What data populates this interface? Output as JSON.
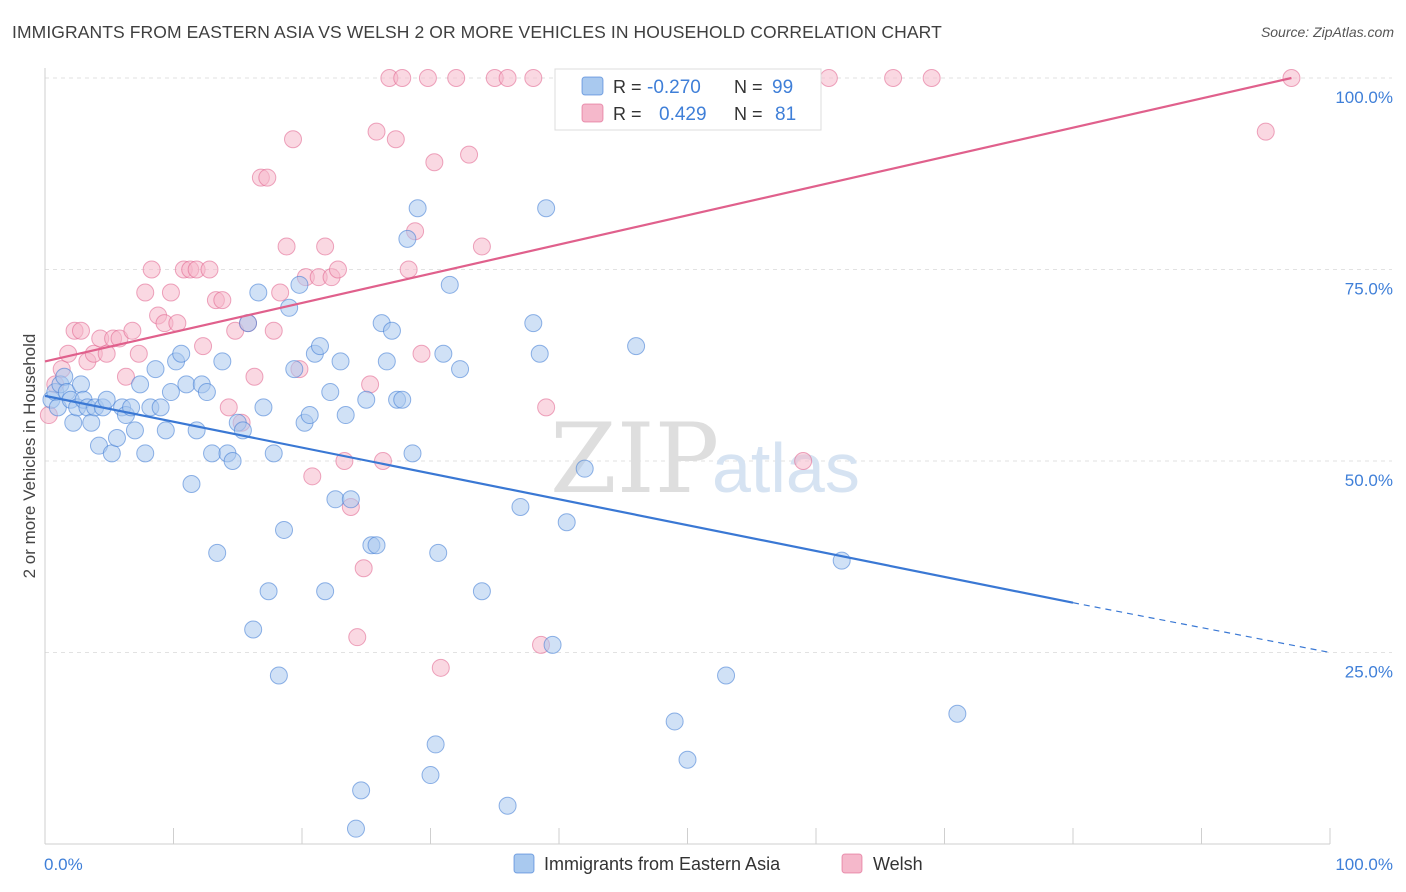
{
  "title": "IMMIGRANTS FROM EASTERN ASIA VS WELSH 2 OR MORE VEHICLES IN HOUSEHOLD CORRELATION CHART",
  "source": "Source: ZipAtlas.com",
  "watermark": {
    "zip": "ZIP",
    "atlas": "atlas"
  },
  "stats": {
    "r_label": "R =",
    "n_label": "N =",
    "rows": [
      {
        "r": "-0.270",
        "n": "99",
        "color": "#a9c9ef"
      },
      {
        "r": "0.429",
        "n": "81",
        "color": "#f5b8cb"
      }
    ]
  },
  "chart_data": {
    "type": "scatter",
    "ylabel": "2 or more Vehicles in Household",
    "xlabel": "",
    "xlim": [
      0,
      100
    ],
    "ylim": [
      0,
      100
    ],
    "x_tick_labels": [
      "0.0%",
      "100.0%"
    ],
    "y_tick_labels": [
      {
        "value": 25,
        "label": "25.0%"
      },
      {
        "value": 50,
        "label": "50.0%"
      },
      {
        "value": 75,
        "label": "75.0%"
      },
      {
        "value": 100,
        "label": "100.0%"
      }
    ],
    "grid": true,
    "legend_position": "bottom",
    "series": [
      {
        "name": "Immigrants from Eastern Asia",
        "color": "#3a78d4",
        "fill": "#a9c9ef",
        "trend": {
          "x": [
            0,
            80
          ],
          "y": [
            58.5,
            31.5
          ],
          "dashed_to": [
            100,
            25
          ]
        },
        "points": [
          [
            0.5,
            58
          ],
          [
            0.8,
            59
          ],
          [
            1,
            57
          ],
          [
            1.2,
            60
          ],
          [
            1.5,
            61
          ],
          [
            1.7,
            59
          ],
          [
            2,
            58
          ],
          [
            2.2,
            55
          ],
          [
            2.5,
            57
          ],
          [
            2.8,
            60
          ],
          [
            3,
            58
          ],
          [
            3.3,
            57
          ],
          [
            3.6,
            55
          ],
          [
            3.9,
            57
          ],
          [
            4.2,
            52
          ],
          [
            4.5,
            57
          ],
          [
            4.8,
            58
          ],
          [
            5.2,
            51
          ],
          [
            5.6,
            53
          ],
          [
            6,
            57
          ],
          [
            6.3,
            56
          ],
          [
            6.7,
            57
          ],
          [
            7,
            54
          ],
          [
            7.4,
            60
          ],
          [
            7.8,
            51
          ],
          [
            8.2,
            57
          ],
          [
            8.6,
            62
          ],
          [
            9,
            57
          ],
          [
            9.4,
            54
          ],
          [
            9.8,
            59
          ],
          [
            10.2,
            63
          ],
          [
            10.6,
            64
          ],
          [
            11,
            60
          ],
          [
            11.4,
            47
          ],
          [
            11.8,
            54
          ],
          [
            12.2,
            60
          ],
          [
            12.6,
            59
          ],
          [
            13,
            51
          ],
          [
            13.4,
            38
          ],
          [
            13.8,
            63
          ],
          [
            14.2,
            51
          ],
          [
            14.6,
            50
          ],
          [
            15,
            55
          ],
          [
            15.4,
            54
          ],
          [
            15.8,
            68
          ],
          [
            16.2,
            28
          ],
          [
            16.6,
            72
          ],
          [
            17,
            57
          ],
          [
            17.4,
            33
          ],
          [
            17.8,
            51
          ],
          [
            18.2,
            22
          ],
          [
            18.6,
            41
          ],
          [
            19,
            70
          ],
          [
            19.4,
            62
          ],
          [
            19.8,
            73
          ],
          [
            20.2,
            55
          ],
          [
            20.6,
            56
          ],
          [
            21,
            64
          ],
          [
            21.4,
            65
          ],
          [
            21.8,
            33
          ],
          [
            22.2,
            59
          ],
          [
            22.6,
            45
          ],
          [
            23,
            63
          ],
          [
            23.4,
            56
          ],
          [
            23.8,
            45
          ],
          [
            24.2,
            2
          ],
          [
            24.6,
            7
          ],
          [
            25,
            58
          ],
          [
            25.4,
            39
          ],
          [
            25.8,
            39
          ],
          [
            26.2,
            68
          ],
          [
            26.6,
            63
          ],
          [
            27,
            67
          ],
          [
            27.4,
            58
          ],
          [
            27.8,
            58
          ],
          [
            28.2,
            79
          ],
          [
            28.6,
            51
          ],
          [
            29,
            83
          ],
          [
            30,
            9
          ],
          [
            30.4,
            13
          ],
          [
            30.6,
            38
          ],
          [
            31,
            64
          ],
          [
            31.5,
            73
          ],
          [
            32.3,
            62
          ],
          [
            34,
            33
          ],
          [
            36,
            5
          ],
          [
            37,
            44
          ],
          [
            38,
            68
          ],
          [
            38.5,
            64
          ],
          [
            39,
            83
          ],
          [
            39.5,
            26
          ],
          [
            40.6,
            42
          ],
          [
            42,
            49
          ],
          [
            46,
            65
          ],
          [
            49,
            16
          ],
          [
            50,
            11
          ],
          [
            53,
            22
          ],
          [
            62,
            37
          ],
          [
            71,
            17
          ]
        ]
      },
      {
        "name": "Welsh",
        "color": "#e0608c",
        "fill": "#f5b8cb",
        "trend": {
          "x": [
            0,
            97
          ],
          "y": [
            63,
            100
          ]
        },
        "points": [
          [
            0.3,
            56
          ],
          [
            0.8,
            60
          ],
          [
            1.3,
            62
          ],
          [
            1.8,
            64
          ],
          [
            2.3,
            67
          ],
          [
            2.8,
            67
          ],
          [
            3.3,
            63
          ],
          [
            3.8,
            64
          ],
          [
            4.3,
            66
          ],
          [
            4.8,
            64
          ],
          [
            5.3,
            66
          ],
          [
            5.8,
            66
          ],
          [
            6.3,
            61
          ],
          [
            6.8,
            67
          ],
          [
            7.3,
            64
          ],
          [
            7.8,
            72
          ],
          [
            8.3,
            75
          ],
          [
            8.8,
            69
          ],
          [
            9.3,
            68
          ],
          [
            9.8,
            72
          ],
          [
            10.3,
            68
          ],
          [
            10.8,
            75
          ],
          [
            11.3,
            75
          ],
          [
            11.8,
            75
          ],
          [
            12.3,
            65
          ],
          [
            12.8,
            75
          ],
          [
            13.3,
            71
          ],
          [
            13.8,
            71
          ],
          [
            14.3,
            57
          ],
          [
            14.8,
            67
          ],
          [
            15.3,
            55
          ],
          [
            15.8,
            68
          ],
          [
            16.3,
            61
          ],
          [
            16.8,
            87
          ],
          [
            17.3,
            87
          ],
          [
            17.8,
            67
          ],
          [
            18.3,
            72
          ],
          [
            18.8,
            78
          ],
          [
            19.3,
            92
          ],
          [
            19.8,
            62
          ],
          [
            20.3,
            74
          ],
          [
            20.8,
            48
          ],
          [
            21.3,
            74
          ],
          [
            21.8,
            78
          ],
          [
            22.3,
            74
          ],
          [
            22.8,
            75
          ],
          [
            23.3,
            50
          ],
          [
            23.8,
            44
          ],
          [
            24.3,
            27
          ],
          [
            24.8,
            36
          ],
          [
            25.3,
            60
          ],
          [
            25.8,
            93
          ],
          [
            26.3,
            50
          ],
          [
            26.8,
            100
          ],
          [
            27.3,
            92
          ],
          [
            27.8,
            100
          ],
          [
            28.3,
            75
          ],
          [
            28.8,
            80
          ],
          [
            29.3,
            64
          ],
          [
            29.8,
            100
          ],
          [
            30.3,
            89
          ],
          [
            30.8,
            23
          ],
          [
            32,
            100
          ],
          [
            33,
            90
          ],
          [
            34,
            78
          ],
          [
            35,
            100
          ],
          [
            36,
            100
          ],
          [
            38,
            100
          ],
          [
            38.6,
            26
          ],
          [
            39,
            57
          ],
          [
            42,
            100
          ],
          [
            43,
            100
          ],
          [
            46,
            100
          ],
          [
            48,
            100
          ],
          [
            55,
            100
          ],
          [
            61,
            100
          ],
          [
            66,
            100
          ],
          [
            69,
            100
          ],
          [
            95,
            93
          ],
          [
            97,
            100
          ],
          [
            59,
            50
          ]
        ]
      }
    ]
  }
}
